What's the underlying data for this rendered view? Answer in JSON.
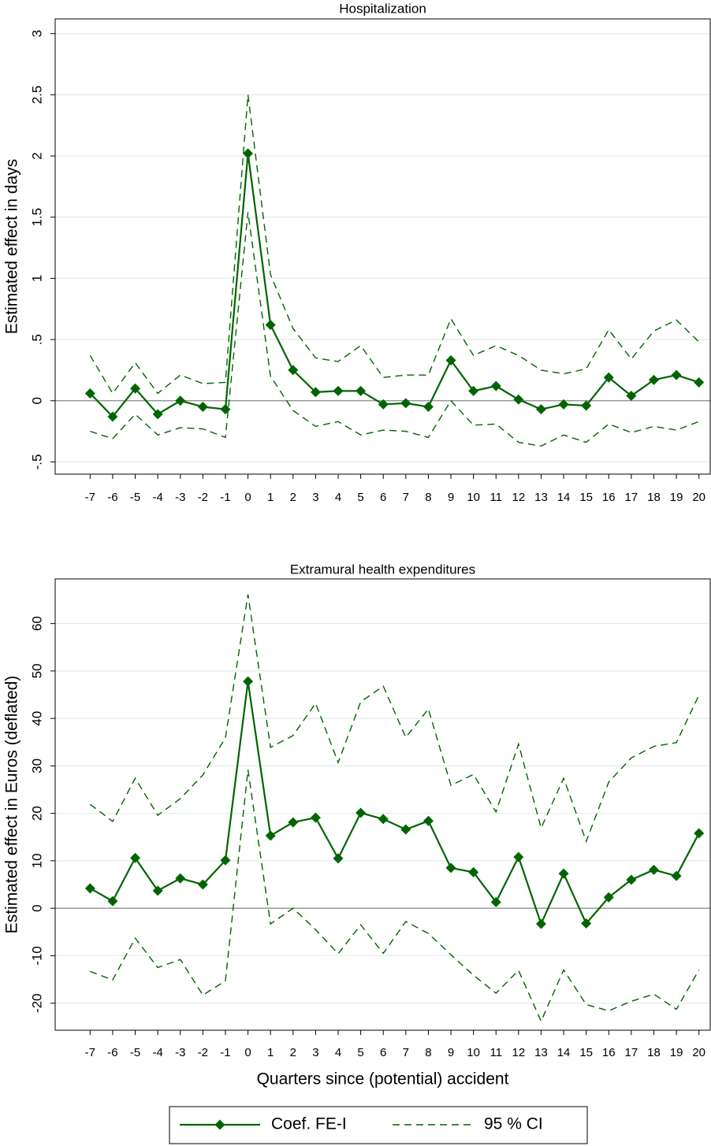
{
  "chart_data": [
    {
      "type": "line",
      "title": "Hospitalization",
      "y_label": "Estimated effect in days",
      "x": [
        -7,
        -6,
        -5,
        -4,
        -3,
        -2,
        -1,
        0,
        1,
        2,
        3,
        4,
        5,
        6,
        7,
        8,
        9,
        10,
        11,
        12,
        13,
        14,
        15,
        16,
        17,
        18,
        19,
        20
      ],
      "xlim": [
        -8.55,
        20.5
      ],
      "xticks": [
        -7,
        -6,
        -5,
        -4,
        -3,
        -2,
        -1,
        0,
        1,
        2,
        3,
        4,
        5,
        6,
        7,
        8,
        9,
        10,
        11,
        12,
        13,
        14,
        15,
        16,
        17,
        18,
        19,
        20
      ],
      "ylim": [
        -0.6,
        3.12
      ],
      "yticks": [
        {
          "value": -0.5,
          "label": "-.5"
        },
        0,
        {
          "value": 0.5,
          "label": ".5"
        },
        1,
        {
          "value": 1.5,
          "label": "1.5"
        },
        2,
        {
          "value": 2.5,
          "label": "2.5"
        },
        3
      ],
      "grid": true,
      "zero_line": true,
      "series": [
        {
          "color": "#006400",
          "style": "solid",
          "marker": "diamond",
          "values": [
            0.06,
            -0.13,
            0.1,
            -0.11,
            0.0,
            -0.05,
            -0.07,
            2.02,
            0.62,
            0.25,
            0.07,
            0.08,
            0.08,
            -0.03,
            -0.02,
            -0.05,
            0.33,
            0.08,
            0.12,
            0.01,
            -0.07,
            -0.03,
            -0.04,
            0.19,
            0.04,
            0.17,
            0.21,
            0.15
          ]
        },
        {
          "color": "#006400",
          "style": "dashed",
          "upper": [
            0.37,
            0.06,
            0.31,
            0.06,
            0.21,
            0.14,
            0.15,
            2.5,
            1.03,
            0.59,
            0.35,
            0.32,
            0.45,
            0.19,
            0.21,
            0.21,
            0.67,
            0.37,
            0.45,
            0.37,
            0.25,
            0.22,
            0.26,
            0.58,
            0.34,
            0.57,
            0.66,
            0.48
          ],
          "lower": [
            -0.25,
            -0.31,
            -0.11,
            -0.28,
            -0.22,
            -0.23,
            -0.3,
            1.54,
            0.2,
            -0.08,
            -0.21,
            -0.17,
            -0.28,
            -0.24,
            -0.25,
            -0.3,
            0.0,
            -0.2,
            -0.19,
            -0.34,
            -0.37,
            -0.28,
            -0.34,
            -0.19,
            -0.26,
            -0.21,
            -0.24,
            -0.17
          ]
        }
      ]
    },
    {
      "type": "line",
      "title": "Extramural health expenditures",
      "y_label": "Estimated effect in Euros (deflated)",
      "x_label": "Quarters since (potential) accident",
      "x": [
        -7,
        -6,
        -5,
        -4,
        -3,
        -2,
        -1,
        0,
        1,
        2,
        3,
        4,
        5,
        6,
        7,
        8,
        9,
        10,
        11,
        12,
        13,
        14,
        15,
        16,
        17,
        18,
        19,
        20
      ],
      "xlim": [
        -8.55,
        20.5
      ],
      "xticks": [
        -7,
        -6,
        -5,
        -4,
        -3,
        -2,
        -1,
        0,
        1,
        2,
        3,
        4,
        5,
        6,
        7,
        8,
        9,
        10,
        11,
        12,
        13,
        14,
        15,
        16,
        17,
        18,
        19,
        20
      ],
      "ylim": [
        -25.7,
        69.4
      ],
      "yticks": [
        -20,
        -10,
        0,
        10,
        20,
        30,
        40,
        50,
        60
      ],
      "grid": true,
      "zero_line": true,
      "legend": "bottom",
      "series": [
        {
          "name": "Coef. FE-I",
          "color": "#006400",
          "style": "solid",
          "marker": "diamond",
          "values": [
            4.2,
            1.5,
            10.6,
            3.7,
            6.3,
            5.0,
            10.1,
            47.8,
            15.3,
            18.1,
            19.1,
            10.5,
            20.1,
            18.8,
            16.6,
            18.4,
            8.5,
            7.6,
            1.3,
            10.8,
            -3.3,
            7.3,
            -3.2,
            2.3,
            6.0,
            8.1,
            6.8,
            15.8
          ]
        },
        {
          "name": "95 % CI",
          "color": "#006400",
          "style": "dashed",
          "upper": [
            21.9,
            18.3,
            27.4,
            19.6,
            23.1,
            28.1,
            35.9,
            66.1,
            33.9,
            36.4,
            43.2,
            30.7,
            43.5,
            46.8,
            36.0,
            42.0,
            25.9,
            28.2,
            20.3,
            34.6,
            16.9,
            27.4,
            14.1,
            26.6,
            31.7,
            34.1,
            34.9,
            44.9
          ],
          "lower": [
            -13.3,
            -15.1,
            -6.3,
            -12.5,
            -10.8,
            -18.3,
            -15.3,
            29.2,
            -3.3,
            0,
            -4.5,
            -9.6,
            -3.5,
            -9.5,
            -2.8,
            -5.3,
            -9.8,
            -14.1,
            -17.9,
            -13.1,
            -23.8,
            -13.0,
            -20.3,
            -21.6,
            -19.6,
            -18.1,
            -21.3,
            -13.0
          ]
        }
      ]
    }
  ]
}
